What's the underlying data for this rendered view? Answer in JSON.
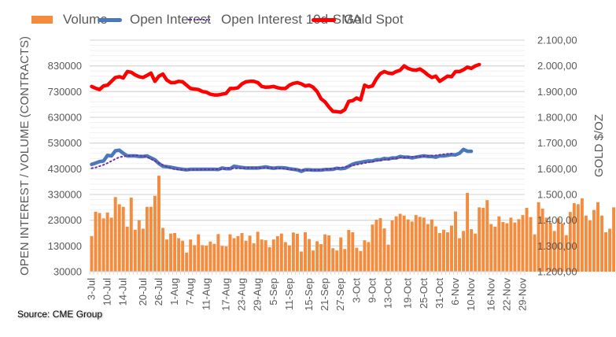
{
  "chart_data": {
    "type": "bar+line",
    "legend": {
      "placement": "top",
      "entries": [
        {
          "name": "Volume",
          "style": "bar",
          "color": "#F58B3C"
        },
        {
          "name": "Open Interest",
          "style": "line",
          "color": "#4A78BB"
        },
        {
          "name": "Open Interest 10d-SMA",
          "style": "dotted-line",
          "color": "#7030A0"
        },
        {
          "name": "Gold Spot",
          "style": "line",
          "color": "#FF0000"
        }
      ]
    },
    "ylabel_left": "OPEN INTEREST / VOLUME (CONTRACTS)",
    "ylabel_right": "GOLD $/OZ",
    "ylim_left": [
      30000,
      930000
    ],
    "ylim_right": [
      1200,
      2100
    ],
    "yticks_left": [
      "30000",
      "130000",
      "230000",
      "330000",
      "430000",
      "530000",
      "630000",
      "730000",
      "830000"
    ],
    "yticks_right": [
      "1.200,00",
      "1.300,00",
      "1.400,00",
      "1.500,00",
      "1.600,00",
      "1.700,00",
      "1.800,00",
      "1.900,00",
      "2.000,00",
      "2.100,00"
    ],
    "x_tick_labels": [
      "3-Jul",
      "10-Jul",
      "14-Jul",
      "20-Jul",
      "26-Jul",
      "1-Aug",
      "7-Aug",
      "11-Aug",
      "17-Aug",
      "23-Aug",
      "29-Aug",
      "5-Sep",
      "11-Sep",
      "15-Sep",
      "21-Sep",
      "27-Sep",
      "3-Oct",
      "9-Oct",
      "13-Oct",
      "19-Oct",
      "25-Oct",
      "31-Oct",
      "6-Nov",
      "10-Nov",
      "16-Nov",
      "22-Nov",
      "29-Nov"
    ],
    "grid": true,
    "n_slots": 110,
    "series": [
      {
        "name": "Volume",
        "axis": "left",
        "type": "bar",
        "values": [
          168000,
          263000,
          258000,
          237000,
          260000,
          240000,
          320000,
          292000,
          282000,
          205000,
          318000,
          193000,
          230000,
          197000,
          282000,
          282000,
          325000,
          403000,
          200000,
          155000,
          178000,
          180000,
          160000,
          150000,
          104000,
          155000,
          133000,
          175000,
          133000,
          131000,
          147000,
          138000,
          176000,
          130000,
          128000,
          175000,
          160000,
          168000,
          180000,
          150000,
          170000,
          140000,
          185000,
          155000,
          152000,
          125000,
          155000,
          168000,
          178000,
          145000,
          132000,
          182000,
          177000,
          108000,
          183000,
          157000,
          112000,
          148000,
          137000,
          175000,
          171000,
          121000,
          112000,
          163000,
          118000,
          192000,
          183000,
          123000,
          110000,
          152000,
          145000,
          213000,
          232000,
          238000,
          198000,
          135000,
          229000,
          245000,
          255000,
          248000,
          233000,
          225000,
          250000,
          243000,
          240000,
          215000,
          233000,
          206000,
          180000,
          193000,
          183000,
          209000,
          264000,
          160000,
          188000,
          336000,
          195000,
          178000,
          280000,
          278000,
          308000,
          215000,
          205000,
          245000,
          223000,
          218000,
          240000,
          221000,
          234000,
          250000,
          278000,
          242000,
          175000,
          300000,
          275000,
          240000,
          220000,
          188000,
          237000,
          218000,
          172000,
          262000,
          296000,
          292000,
          315000,
          248000,
          230000,
          270000,
          300000,
          248000,
          183000,
          197000,
          280000,
          265000,
          230000,
          160000,
          225000,
          208000,
          180000,
          300000,
          292000,
          315000
        ]
      },
      {
        "name": "Open Interest",
        "axis": "left",
        "type": "line",
        "values": [
          447000,
          452000,
          458000,
          460000,
          482000,
          480000,
          500000,
          502000,
          490000,
          480000,
          480000,
          480000,
          478000,
          478000,
          480000,
          472000,
          465000,
          450000,
          440000,
          438000,
          436000,
          433000,
          430000,
          428000,
          426000,
          428000,
          428000,
          428000,
          428000,
          428000,
          428000,
          428000,
          427000,
          433000,
          430000,
          430000,
          440000,
          437000,
          435000,
          433000,
          433000,
          433000,
          433000,
          435000,
          437000,
          434000,
          432000,
          434000,
          434000,
          433000,
          430000,
          428000,
          426000,
          420000,
          426000,
          426000,
          425000,
          425000,
          425000,
          427000,
          427000,
          428000,
          432000,
          430000,
          432000,
          440000,
          448000,
          452000,
          455000,
          458000,
          460000,
          460000,
          465000,
          465000,
          470000,
          468000,
          472000,
          472000,
          478000,
          475000,
          475000,
          472000,
          475000,
          478000,
          480000,
          478000,
          478000,
          475000,
          480000,
          480000,
          482000,
          485000,
          484000,
          490000,
          505000,
          498000,
          498000
        ]
      },
      {
        "name": "Open Interest 10d-SMA",
        "axis": "left",
        "type": "line",
        "values": [
          432000,
          435000,
          440000,
          445000,
          452000,
          460000,
          468000,
          475000,
          478000,
          480000,
          481000,
          482000,
          482000,
          480000,
          475000,
          468000,
          460000,
          452000,
          445000,
          438000,
          432000,
          428000,
          427000,
          426000,
          426000,
          426000,
          426000,
          426000,
          427000,
          427000,
          427000,
          428000,
          428000,
          429000,
          430000,
          431000,
          432000,
          432000,
          432000,
          433000,
          433000,
          433000,
          433000,
          433000,
          433000,
          433000,
          432000,
          432000,
          431000,
          430000,
          428000,
          427000,
          426000,
          425000,
          425000,
          425000,
          425000,
          425000,
          426000,
          427000,
          428000,
          430000,
          432000,
          434000,
          437000,
          440000,
          443000,
          446000,
          449000,
          452000,
          455000,
          458000,
          460000,
          463000,
          465000,
          467000,
          469000,
          471000,
          473000,
          474000,
          475000,
          476000,
          477000,
          478000,
          479000,
          480000,
          481000,
          482000,
          484000,
          486000,
          488000,
          489000
        ]
      },
      {
        "name": "Gold Spot",
        "axis": "right",
        "type": "line",
        "values": [
          1920,
          1913,
          1908,
          1922,
          1925,
          1940,
          1955,
          1958,
          1953,
          1978,
          1975,
          1965,
          1958,
          1955,
          1963,
          1972,
          1940,
          1960,
          1968,
          1945,
          1935,
          1935,
          1940,
          1938,
          1925,
          1912,
          1910,
          1908,
          1900,
          1898,
          1890,
          1887,
          1887,
          1890,
          1893,
          1912,
          1912,
          1915,
          1930,
          1938,
          1940,
          1940,
          1935,
          1920,
          1917,
          1918,
          1920,
          1915,
          1912,
          1912,
          1925,
          1932,
          1935,
          1930,
          1922,
          1925,
          1917,
          1900,
          1872,
          1860,
          1840,
          1823,
          1822,
          1820,
          1830,
          1862,
          1865,
          1875,
          1868,
          1925,
          1918,
          1922,
          1950,
          1970,
          1978,
          1972,
          1970,
          1978,
          1983,
          2000,
          1990,
          1985,
          1983,
          1988,
          1978,
          1965,
          1955,
          1960,
          1940,
          1950,
          1960,
          1958,
          1978,
          1978,
          1985,
          1995,
          1990,
          2000,
          2005
        ]
      }
    ]
  },
  "source": "Source: CME Group"
}
